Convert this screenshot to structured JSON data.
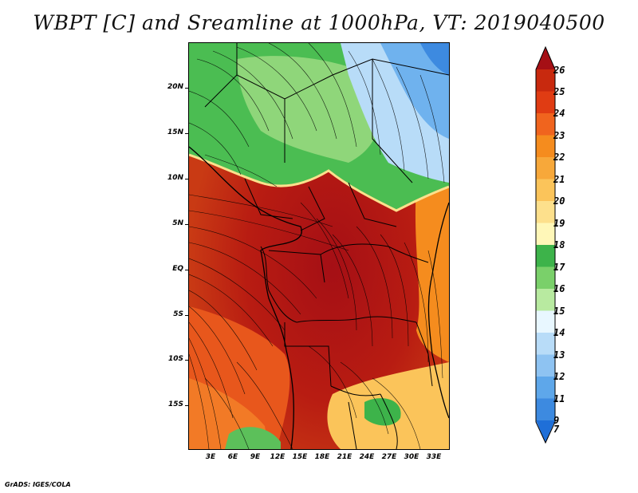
{
  "title": "WBPT [C] and Sreamline at 1000hPa, VT: 2019040500",
  "credit": "GrADS: IGES/COLA",
  "map": {
    "variable": "WBPT [C]",
    "streamline_level": "1000hPa",
    "valid_time": "2019040500",
    "lon_range": [
      0,
      35.5
    ],
    "lat_range": [
      -19.5,
      25
    ],
    "lat_ticks": [
      {
        "label": "20N",
        "value": 20
      },
      {
        "label": "15N",
        "value": 15
      },
      {
        "label": "10N",
        "value": 10
      },
      {
        "label": "5N",
        "value": 5
      },
      {
        "label": "EQ",
        "value": 0
      },
      {
        "label": "5S",
        "value": -5
      },
      {
        "label": "10S",
        "value": -10
      },
      {
        "label": "15S",
        "value": -15
      }
    ],
    "lon_ticks": [
      {
        "label": "3E",
        "value": 3
      },
      {
        "label": "6E",
        "value": 6
      },
      {
        "label": "9E",
        "value": 9
      },
      {
        "label": "12E",
        "value": 12
      },
      {
        "label": "15E",
        "value": 15
      },
      {
        "label": "18E",
        "value": 18
      },
      {
        "label": "21E",
        "value": 21
      },
      {
        "label": "24E",
        "value": 24
      },
      {
        "label": "27E",
        "value": 27
      },
      {
        "label": "30E",
        "value": 30
      },
      {
        "label": "33E",
        "value": 33
      }
    ]
  },
  "colorbar": {
    "labels": [
      "26",
      "25",
      "24",
      "23",
      "22",
      "21",
      "20",
      "19",
      "18",
      "17",
      "16",
      "15",
      "14",
      "13",
      "12",
      "11",
      "9",
      "7"
    ],
    "colors": [
      "#a50f15",
      "#c8290e",
      "#e03c13",
      "#f0641e",
      "#f58c1e",
      "#f7a83a",
      "#fbc45a",
      "#fde08c",
      "#fff7b8",
      "#3db34a",
      "#7ad06a",
      "#b8eaa0",
      "#e8f7ff",
      "#b8dcf8",
      "#8ec3f2",
      "#5ea7ea",
      "#3d8ae0",
      "#1f6fd8"
    ]
  }
}
